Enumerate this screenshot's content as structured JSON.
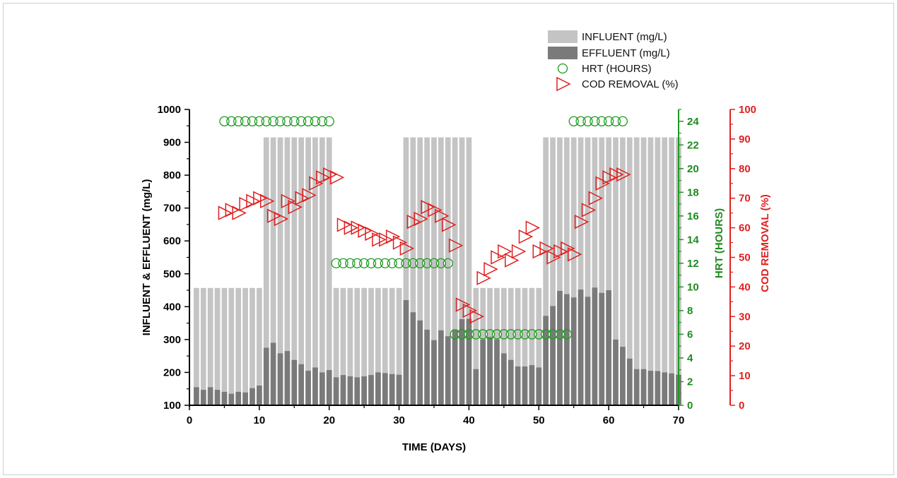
{
  "chart_data": {
    "type": "bar",
    "xlabel": "TIME (DAYS)",
    "ylabel": "INFLUENT & EFFLUENT (mg/L)",
    "y2label": "HRT (HOURS)",
    "y3label": "COD REMOVAL (%)",
    "xlim": [
      0,
      70
    ],
    "ylim": [
      100,
      1000
    ],
    "y2lim": [
      0,
      25
    ],
    "y3lim": [
      0,
      100
    ],
    "xticks": [
      "0",
      "10",
      "20",
      "30",
      "40",
      "50",
      "60",
      "70"
    ],
    "yticks": [
      "100",
      "200",
      "300",
      "400",
      "500",
      "600",
      "700",
      "800",
      "900",
      "1000"
    ],
    "y2ticks": [
      "0",
      "2",
      "4",
      "6",
      "8",
      "10",
      "12",
      "14",
      "16",
      "18",
      "20",
      "22",
      "24"
    ],
    "y3ticks": [
      "0",
      "10",
      "20",
      "30",
      "40",
      "50",
      "60",
      "70",
      "80",
      "90",
      "100"
    ],
    "grid": false,
    "legend_position": "top-right",
    "days": [
      1,
      2,
      3,
      4,
      5,
      6,
      7,
      8,
      9,
      10,
      11,
      12,
      13,
      14,
      15,
      16,
      17,
      18,
      19,
      20,
      21,
      22,
      23,
      24,
      25,
      26,
      27,
      28,
      29,
      30,
      31,
      32,
      33,
      34,
      35,
      36,
      37,
      38,
      39,
      40,
      41,
      42,
      43,
      44,
      45,
      46,
      47,
      48,
      49,
      50,
      51,
      52,
      53,
      54,
      55,
      56,
      57,
      58,
      59,
      60,
      61,
      62,
      63,
      64,
      65,
      66,
      67,
      68,
      69,
      70
    ],
    "series": [
      {
        "name": "INFLUENT (mg/L)",
        "color": "#c4c4c4",
        "marker": "bar",
        "values": [
          457,
          457,
          457,
          457,
          457,
          457,
          457,
          457,
          457,
          457,
          915,
          915,
          915,
          915,
          915,
          915,
          915,
          915,
          915,
          915,
          457,
          457,
          457,
          457,
          457,
          457,
          457,
          457,
          457,
          457,
          915,
          915,
          915,
          915,
          915,
          915,
          915,
          915,
          915,
          915,
          457,
          457,
          457,
          457,
          457,
          457,
          457,
          457,
          457,
          457,
          915,
          915,
          915,
          915,
          915,
          915,
          915,
          915,
          915,
          915,
          915,
          915,
          915,
          915,
          915,
          915,
          915,
          915,
          915,
          915
        ]
      },
      {
        "name": "EFFLUENT (mg/L)",
        "color": "#7a7a7a",
        "marker": "bar",
        "values": [
          155,
          147,
          155,
          147,
          141,
          135,
          141,
          139,
          152,
          160,
          275,
          290,
          258,
          265,
          238,
          225,
          205,
          215,
          200,
          207,
          185,
          192,
          188,
          185,
          188,
          192,
          200,
          198,
          195,
          193,
          420,
          383,
          358,
          330,
          298,
          328,
          310,
          328,
          362,
          363,
          210,
          300,
          308,
          300,
          258,
          238,
          218,
          218,
          222,
          215,
          372,
          402,
          448,
          438,
          428,
          452,
          430,
          458,
          442,
          450,
          300,
          278,
          242,
          210,
          210,
          205,
          204,
          200,
          197,
          193
        ]
      },
      {
        "name": "HRT (HOURS)",
        "color": "#1e9a1e",
        "marker": "circle",
        "axis": "y2",
        "points": [
          [
            5,
            24
          ],
          [
            6,
            24
          ],
          [
            7,
            24
          ],
          [
            8,
            24
          ],
          [
            9,
            24
          ],
          [
            10,
            24
          ],
          [
            11,
            24
          ],
          [
            12,
            24
          ],
          [
            13,
            24
          ],
          [
            14,
            24
          ],
          [
            15,
            24
          ],
          [
            16,
            24
          ],
          [
            17,
            24
          ],
          [
            18,
            24
          ],
          [
            19,
            24
          ],
          [
            20,
            24
          ],
          [
            21,
            12
          ],
          [
            22,
            12
          ],
          [
            23,
            12
          ],
          [
            24,
            12
          ],
          [
            25,
            12
          ],
          [
            26,
            12
          ],
          [
            27,
            12
          ],
          [
            28,
            12
          ],
          [
            29,
            12
          ],
          [
            30,
            12
          ],
          [
            31,
            12
          ],
          [
            32,
            12
          ],
          [
            33,
            12
          ],
          [
            34,
            12
          ],
          [
            35,
            12
          ],
          [
            36,
            12
          ],
          [
            37,
            12
          ],
          [
            38,
            6
          ],
          [
            39,
            6
          ],
          [
            40,
            6
          ],
          [
            41,
            6
          ],
          [
            42,
            6
          ],
          [
            43,
            6
          ],
          [
            44,
            6
          ],
          [
            45,
            6
          ],
          [
            46,
            6
          ],
          [
            47,
            6
          ],
          [
            48,
            6
          ],
          [
            49,
            6
          ],
          [
            50,
            6
          ],
          [
            51,
            6
          ],
          [
            52,
            6
          ],
          [
            53,
            6
          ],
          [
            54,
            6
          ],
          [
            55,
            24
          ],
          [
            56,
            24
          ],
          [
            57,
            24
          ],
          [
            58,
            24
          ],
          [
            59,
            24
          ],
          [
            60,
            24
          ],
          [
            61,
            24
          ],
          [
            62,
            24
          ]
        ]
      },
      {
        "name": "COD REMOVAL (%)",
        "color": "#e02020",
        "marker": "triangle-right",
        "axis": "y3",
        "points": [
          [
            5,
            65
          ],
          [
            6,
            66
          ],
          [
            7,
            65
          ],
          [
            8,
            68
          ],
          [
            9,
            69
          ],
          [
            10,
            70
          ],
          [
            11,
            69
          ],
          [
            12,
            64
          ],
          [
            13,
            63
          ],
          [
            14,
            69
          ],
          [
            15,
            67
          ],
          [
            16,
            70
          ],
          [
            17,
            71
          ],
          [
            18,
            75
          ],
          [
            19,
            77
          ],
          [
            20,
            78
          ],
          [
            21,
            77
          ],
          [
            22,
            61
          ],
          [
            23,
            60
          ],
          [
            24,
            60
          ],
          [
            25,
            59
          ],
          [
            26,
            58
          ],
          [
            27,
            56
          ],
          [
            28,
            56
          ],
          [
            29,
            57
          ],
          [
            30,
            55
          ],
          [
            31,
            53
          ],
          [
            32,
            62
          ],
          [
            33,
            63
          ],
          [
            34,
            67
          ],
          [
            35,
            66
          ],
          [
            36,
            64
          ],
          [
            37,
            61
          ],
          [
            38,
            54
          ],
          [
            39,
            34
          ],
          [
            40,
            32
          ],
          [
            41,
            30
          ],
          [
            42,
            43
          ],
          [
            43,
            46
          ],
          [
            44,
            50
          ],
          [
            45,
            52
          ],
          [
            46,
            49
          ],
          [
            47,
            52
          ],
          [
            48,
            57
          ],
          [
            49,
            60
          ],
          [
            50,
            52
          ],
          [
            51,
            53
          ],
          [
            52,
            50
          ],
          [
            53,
            52
          ],
          [
            54,
            53
          ],
          [
            55,
            51
          ],
          [
            56,
            62
          ],
          [
            57,
            66
          ],
          [
            58,
            70
          ],
          [
            59,
            75
          ],
          [
            60,
            77
          ],
          [
            61,
            78
          ],
          [
            62,
            78
          ]
        ]
      }
    ]
  }
}
